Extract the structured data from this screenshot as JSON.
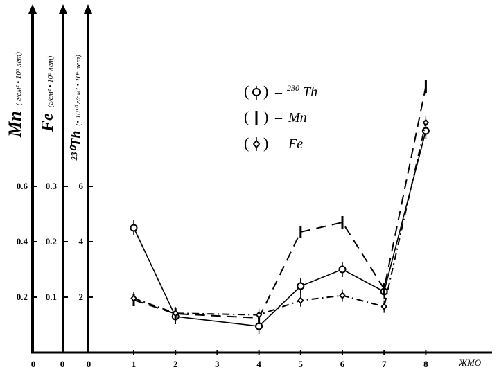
{
  "chart_data": {
    "type": "line",
    "x_axis": {
      "label": "ЖМО",
      "ticks": [
        "1",
        "2",
        "3",
        "4",
        "5",
        "6",
        "7",
        "8"
      ],
      "zeros": [
        "0",
        "0",
        "0"
      ]
    },
    "y_axes": [
      {
        "id": "mn",
        "title_main": "Mn",
        "title_units": "( г/см² • 10⁶ лет)",
        "ticks": [
          {
            "value": 0.2,
            "label": "0.2"
          },
          {
            "value": 0.4,
            "label": "0.4"
          },
          {
            "value": 0.6,
            "label": "0.6"
          }
        ]
      },
      {
        "id": "fe",
        "title_main": "Fe",
        "title_units": "(г/см² • 10⁶ лет)",
        "ticks": [
          {
            "value": 0.1,
            "label": "0.1"
          },
          {
            "value": 0.2,
            "label": "0.2"
          },
          {
            "value": 0.3,
            "label": "0.3"
          }
        ]
      },
      {
        "id": "th",
        "title_main": "²³⁰Th",
        "title_units": "(• 10¹⁰ г/см² • 10⁶ лет)",
        "ticks": [
          {
            "value": 2,
            "label": "2"
          },
          {
            "value": 4,
            "label": "4"
          },
          {
            "value": 6,
            "label": "6"
          }
        ]
      }
    ],
    "series": [
      {
        "name": "²³⁰Th",
        "style": "solid",
        "axis": "th",
        "points": [
          [
            1,
            4.5
          ],
          [
            2,
            1.3
          ],
          [
            4,
            0.95
          ],
          [
            5,
            2.4
          ],
          [
            6,
            3.0
          ],
          [
            7,
            2.2
          ],
          [
            8,
            8.0
          ]
        ]
      },
      {
        "name": "Mn",
        "style": "dashed",
        "axis": "mn",
        "points": [
          [
            1,
            0.19
          ],
          [
            2,
            0.14
          ],
          [
            4,
            0.125
          ],
          [
            5,
            0.435
          ],
          [
            6,
            0.47
          ],
          [
            7,
            0.23
          ],
          [
            8,
            0.96
          ]
        ]
      },
      {
        "name": "Fe",
        "style": "dashdot",
        "axis": "fe",
        "points": [
          [
            1,
            0.098
          ],
          [
            2,
            0.071
          ],
          [
            4,
            0.068
          ],
          [
            5,
            0.094
          ],
          [
            6,
            0.103
          ],
          [
            7,
            0.083
          ],
          [
            8,
            0.415
          ]
        ]
      }
    ]
  },
  "legend": {
    "items": [
      {
        "label": "²³⁰Th",
        "prefix": "–"
      },
      {
        "label": "Mn",
        "prefix": "–"
      },
      {
        "label": "Fe",
        "prefix": "–"
      }
    ]
  }
}
